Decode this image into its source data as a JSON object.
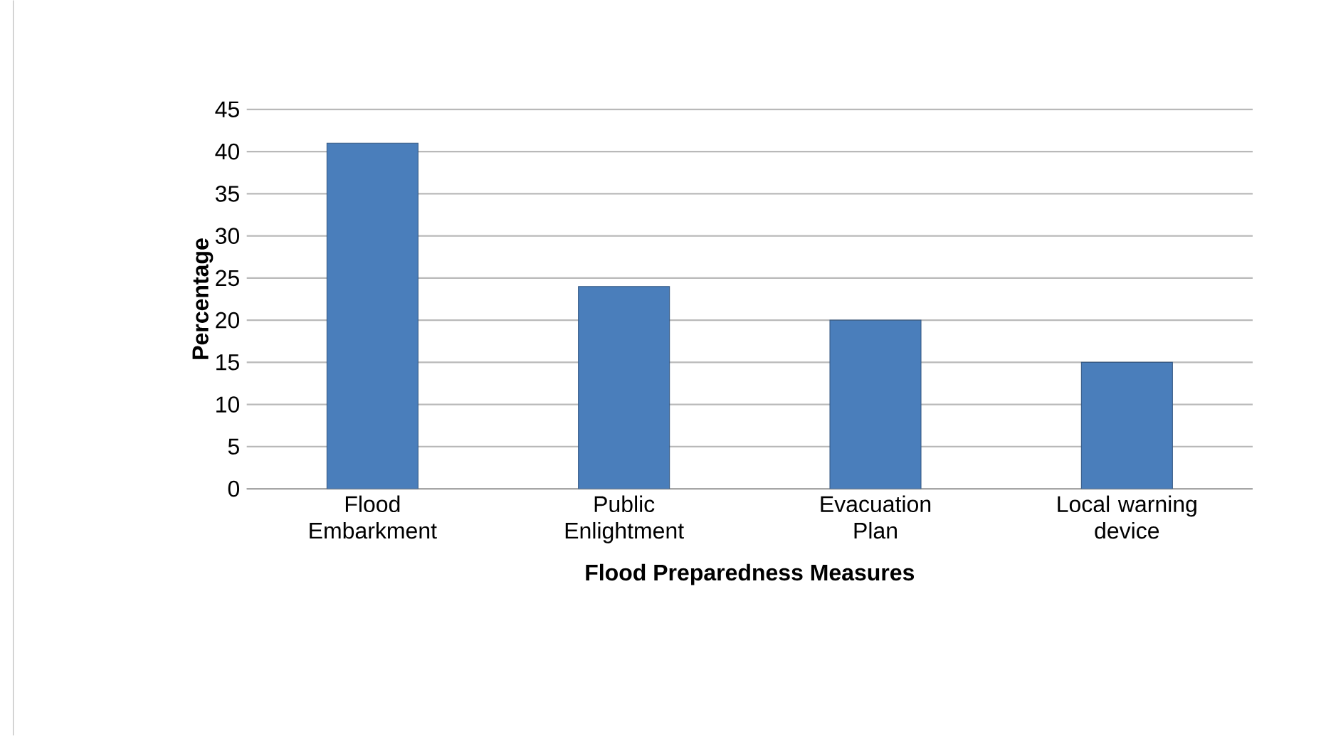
{
  "chart_data": {
    "type": "bar",
    "xlabel": "Flood Preparedness Measures",
    "ylabel": "Percentage",
    "categories": [
      "Flood Embarkment",
      "Public Enlightment",
      "Evacuation Plan",
      "Local warning device"
    ],
    "values": [
      41,
      24,
      20,
      15
    ],
    "color": "#4a7ebb",
    "ylim": [
      0,
      45
    ],
    "yticks": [
      0,
      5,
      10,
      15,
      20,
      25,
      30,
      35,
      40,
      45
    ],
    "grid": "y"
  }
}
